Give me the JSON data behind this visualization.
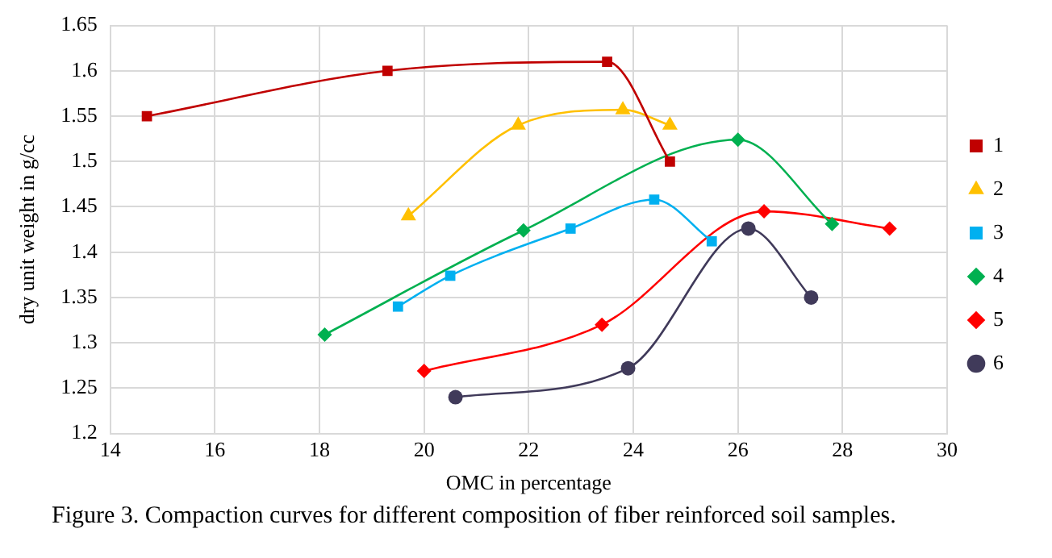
{
  "chart_data": {
    "type": "line",
    "xlabel": "OMC in percentage",
    "ylabel": "dry unit weight in g/cc",
    "xlim": [
      14,
      30
    ],
    "xticks": [
      14,
      16,
      18,
      20,
      22,
      24,
      26,
      28,
      30
    ],
    "ylim": [
      1.2,
      1.65
    ],
    "yticks": [
      1.2,
      1.25,
      1.3,
      1.35,
      1.4,
      1.45,
      1.5,
      1.55,
      1.6,
      1.65
    ],
    "grid": true,
    "legend": "right",
    "annotations": [
      "Figure 3. Compaction curves for different composition of fiber reinforced soil samples."
    ],
    "series": [
      {
        "name": "1",
        "color": "#c00000",
        "marker": "square",
        "x": [
          14.7,
          19.3,
          23.5,
          24.7
        ],
        "values": [
          1.55,
          1.6,
          1.61,
          1.5
        ]
      },
      {
        "name": "2",
        "color": "#ffc000",
        "marker": "triangle",
        "x": [
          19.7,
          21.8,
          23.8,
          24.7
        ],
        "values": [
          1.44,
          1.54,
          1.557,
          1.54
        ]
      },
      {
        "name": "3",
        "color": "#00b0f0",
        "marker": "square",
        "x": [
          19.5,
          20.5,
          22.8,
          24.4,
          25.5
        ],
        "values": [
          1.34,
          1.374,
          1.426,
          1.458,
          1.412
        ]
      },
      {
        "name": "4",
        "color": "#00b050",
        "marker": "diamond",
        "x": [
          18.1,
          21.9,
          26.0,
          27.8
        ],
        "values": [
          1.309,
          1.424,
          1.524,
          1.431
        ]
      },
      {
        "name": "5",
        "color": "#ff0000",
        "marker": "diamond",
        "x": [
          20.0,
          23.4,
          26.5,
          28.9
        ],
        "values": [
          1.269,
          1.32,
          1.445,
          1.426
        ]
      },
      {
        "name": "6",
        "color": "#403a5a",
        "marker": "circle",
        "x": [
          20.6,
          23.9,
          26.2,
          27.4
        ],
        "values": [
          1.24,
          1.272,
          1.426,
          1.35
        ]
      }
    ]
  }
}
